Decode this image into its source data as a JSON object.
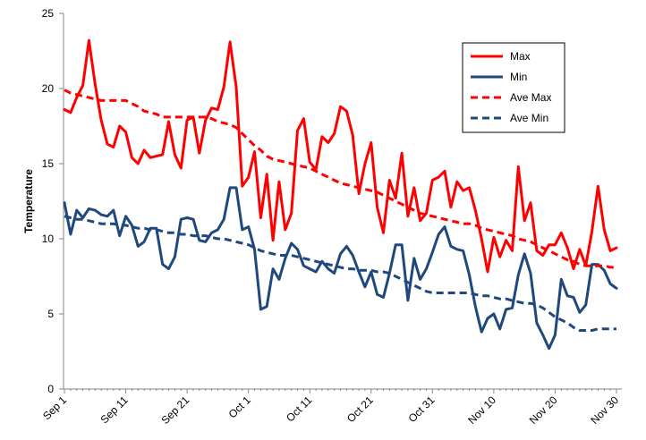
{
  "chart_data": {
    "type": "line",
    "title": "",
    "xlabel": "",
    "ylabel": "Temperature",
    "ylim": [
      0,
      25
    ],
    "yticks": [
      0,
      5,
      10,
      15,
      20,
      25
    ],
    "xlim": [
      0,
      91
    ],
    "xticks": [
      {
        "label": "Sep 1",
        "x": 0
      },
      {
        "label": "Sep 11",
        "x": 10
      },
      {
        "label": "Sep 21",
        "x": 20
      },
      {
        "label": "Oct 1",
        "x": 30
      },
      {
        "label": "Oct 11",
        "x": 40
      },
      {
        "label": "Oct 21",
        "x": 50
      },
      {
        "label": "Oct 31",
        "x": 60
      },
      {
        "label": "Nov 10",
        "x": 70
      },
      {
        "label": "Nov 20",
        "x": 80
      },
      {
        "label": "Nov 30",
        "x": 90
      }
    ],
    "grid": false,
    "legend_position": "top-right",
    "series": [
      {
        "name": "Max",
        "color": "#ff0000",
        "dash": "solid",
        "values": [
          18.6,
          18.4,
          19.4,
          20.2,
          23.2,
          20.3,
          17.9,
          16.3,
          16.1,
          17.5,
          17.1,
          15.4,
          15.0,
          15.9,
          15.4,
          15.5,
          15.6,
          17.8,
          15.6,
          14.7,
          17.9,
          18.1,
          15.7,
          17.9,
          18.7,
          18.6,
          20.1,
          23.1,
          20.1,
          13.5,
          14.1,
          15.8,
          11.4,
          14.3,
          9.9,
          13.8,
          10.6,
          11.7,
          17.2,
          18.0,
          15.1,
          14.6,
          16.8,
          16.4,
          17.0,
          18.8,
          18.5,
          16.9,
          13.0,
          15.0,
          16.4,
          12.1,
          10.4,
          13.9,
          12.7,
          15.7,
          11.5,
          13.4,
          11.2,
          11.7,
          13.9,
          14.1,
          14.5,
          12.1,
          13.8,
          13.2,
          13.4,
          11.9,
          10.0,
          7.8,
          10.1,
          8.8,
          9.9,
          9.2,
          14.8,
          11.2,
          12.4,
          9.2,
          8.9,
          9.6,
          9.6,
          10.4,
          9.4,
          8.0,
          9.3,
          8.2,
          10.5,
          13.5,
          10.6,
          9.2,
          9.4
        ]
      },
      {
        "name": "Min",
        "color": "#1f497d",
        "dash": "solid",
        "values": [
          12.4,
          10.3,
          11.9,
          11.4,
          12.0,
          11.9,
          11.6,
          11.5,
          11.9,
          10.2,
          11.5,
          10.9,
          9.5,
          9.8,
          10.7,
          10.7,
          8.3,
          8.0,
          8.8,
          11.3,
          11.4,
          11.3,
          9.9,
          9.8,
          10.4,
          10.6,
          11.3,
          13.4,
          13.4,
          10.6,
          10.8,
          9.3,
          5.3,
          5.5,
          8.0,
          7.3,
          8.7,
          9.7,
          9.3,
          8.2,
          8.0,
          7.8,
          8.5,
          8.0,
          7.7,
          9.0,
          9.5,
          8.9,
          7.8,
          6.8,
          7.8,
          6.3,
          6.1,
          7.7,
          9.6,
          9.6,
          5.9,
          8.7,
          7.3,
          8.0,
          9.1,
          10.3,
          10.8,
          9.5,
          9.3,
          9.2,
          7.6,
          5.5,
          3.8,
          4.7,
          5.0,
          4.0,
          5.3,
          5.4,
          7.6,
          9.0,
          7.7,
          4.4,
          3.6,
          2.7,
          3.6,
          7.3,
          6.2,
          6.1,
          5.1,
          5.6,
          8.3,
          8.3,
          7.9,
          7.0,
          6.7
        ]
      },
      {
        "name": "Ave Max",
        "color": "#ff0000",
        "dash": "dashed",
        "values": [
          19.9,
          19.7,
          19.6,
          19.5,
          19.4,
          19.3,
          19.2,
          19.2,
          19.2,
          19.2,
          19.2,
          19.0,
          18.8,
          18.5,
          18.4,
          18.3,
          18.1,
          18.1,
          18.1,
          18.1,
          18.1,
          18.1,
          18.1,
          18.1,
          18.0,
          17.8,
          17.7,
          17.6,
          17.4,
          17.0,
          16.6,
          16.2,
          15.9,
          15.5,
          15.3,
          15.2,
          15.1,
          15.0,
          14.9,
          14.8,
          14.7,
          14.5,
          14.3,
          14.1,
          13.9,
          13.7,
          13.6,
          13.5,
          13.4,
          13.3,
          13.2,
          13.1,
          12.9,
          12.7,
          12.5,
          12.3,
          12.1,
          11.9,
          11.7,
          11.6,
          11.5,
          11.4,
          11.3,
          11.2,
          11.1,
          11.0,
          11.0,
          10.9,
          10.7,
          10.6,
          10.5,
          10.4,
          10.3,
          10.2,
          10.0,
          9.9,
          9.8,
          9.6,
          9.4,
          9.2,
          9.0,
          8.8,
          8.6,
          8.5,
          8.3,
          8.2,
          8.2,
          8.2,
          8.2,
          8.1,
          8.1
        ]
      },
      {
        "name": "Ave Min",
        "color": "#1f497d",
        "dash": "dashed",
        "values": [
          11.5,
          11.4,
          11.3,
          11.3,
          11.2,
          11.1,
          11.0,
          11.0,
          11.0,
          10.9,
          10.9,
          10.8,
          10.7,
          10.7,
          10.6,
          10.6,
          10.5,
          10.4,
          10.4,
          10.3,
          10.3,
          10.2,
          10.2,
          10.2,
          10.1,
          10.0,
          10.0,
          9.9,
          9.8,
          9.7,
          9.6,
          9.4,
          9.2,
          9.1,
          9.0,
          8.9,
          8.9,
          8.9,
          8.8,
          8.7,
          8.6,
          8.5,
          8.4,
          8.3,
          8.2,
          8.1,
          8.0,
          8.0,
          7.9,
          7.9,
          7.9,
          7.8,
          7.8,
          7.7,
          7.5,
          7.3,
          7.1,
          6.9,
          6.7,
          6.5,
          6.4,
          6.4,
          6.4,
          6.4,
          6.4,
          6.4,
          6.4,
          6.3,
          6.2,
          6.2,
          6.1,
          6.0,
          6.0,
          5.9,
          5.8,
          5.7,
          5.7,
          5.6,
          5.4,
          5.1,
          4.8,
          4.6,
          4.4,
          4.1,
          3.9,
          3.9,
          3.9,
          4.0,
          4.0,
          4.0,
          4.0
        ]
      }
    ]
  }
}
